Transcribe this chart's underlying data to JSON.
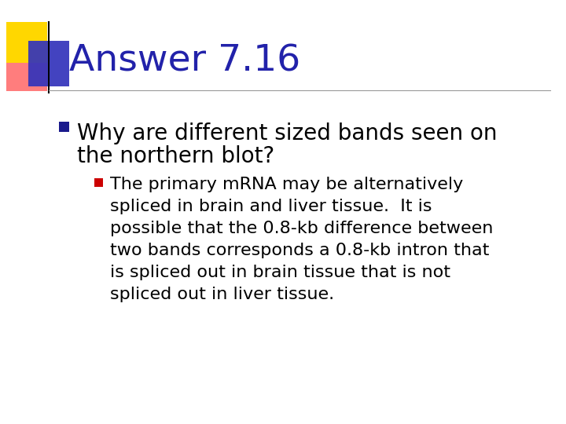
{
  "title": "Answer 7.16",
  "title_color": "#2222AA",
  "title_fontsize": 34,
  "background_color": "#FFFFFF",
  "bullet1_line1": "Why are different sized bands seen on",
  "bullet1_line2": "the northern blot?",
  "bullet1_color": "#000000",
  "bullet1_fontsize": 20,
  "bullet1_marker_color": "#1A1A8C",
  "bullet2_text": "The primary mRNA may be alternatively\nspliced in brain and liver tissue.  It is\npossible that the 0.8-kb difference between\ntwo bands corresponds a 0.8-kb intron that\nis spliced out in brain tissue that is not\nspliced out in liver tissue.",
  "bullet2_color": "#000000",
  "bullet2_fontsize": 16,
  "bullet2_marker_color": "#CC0000",
  "accent_yellow": "#FFD700",
  "accent_red": "#FF6666",
  "accent_blue": "#3333BB",
  "line_color": "#999999",
  "vertical_line_color": "#000000"
}
